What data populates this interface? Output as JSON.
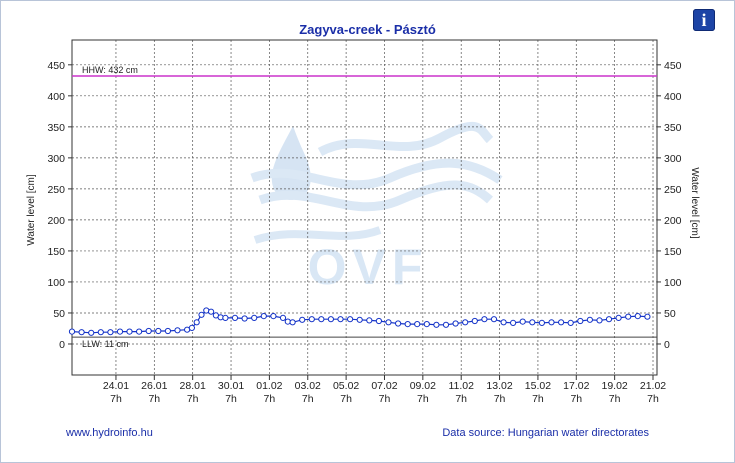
{
  "header": {
    "title": "Zagyva-creek - Pásztó",
    "info_icon": "info-icon",
    "info_label": "i"
  },
  "footer": {
    "website": "www.hydroinfo.hu",
    "source": "Data source: Hungarian water directorates"
  },
  "watermark": {
    "text": "OVF",
    "icon": "water-drop-waves-logo"
  },
  "colors": {
    "series": "#1433c8",
    "hhw": "#cc33cc",
    "llw": "#444444",
    "text": "#1a2ea8",
    "watermark": "#cfe0f2"
  },
  "chart_data": {
    "type": "line",
    "title": "Zagyva-creek - Pásztó",
    "ylabel_left": "Water level [cm]",
    "ylabel_right": "Water level [cm]",
    "ylim": [
      -50,
      490
    ],
    "yticks": [
      0,
      50,
      100,
      150,
      200,
      250,
      300,
      350,
      400,
      450
    ],
    "grid": true,
    "xlim": [
      "2023-01-22T00:00",
      "2023-02-21T12:00"
    ],
    "xticks": [
      {
        "date": "2023-01-24T07:00",
        "day": "24.01",
        "hour": "7h"
      },
      {
        "date": "2023-01-26T07:00",
        "day": "26.01",
        "hour": "7h"
      },
      {
        "date": "2023-01-28T07:00",
        "day": "28.01",
        "hour": "7h"
      },
      {
        "date": "2023-01-30T07:00",
        "day": "30.01",
        "hour": "7h"
      },
      {
        "date": "2023-02-01T07:00",
        "day": "01.02",
        "hour": "7h"
      },
      {
        "date": "2023-02-03T07:00",
        "day": "03.02",
        "hour": "7h"
      },
      {
        "date": "2023-02-05T07:00",
        "day": "05.02",
        "hour": "7h"
      },
      {
        "date": "2023-02-07T07:00",
        "day": "07.02",
        "hour": "7h"
      },
      {
        "date": "2023-02-09T07:00",
        "day": "09.02",
        "hour": "7h"
      },
      {
        "date": "2023-02-11T07:00",
        "day": "11.02",
        "hour": "7h"
      },
      {
        "date": "2023-02-13T07:00",
        "day": "13.02",
        "hour": "7h"
      },
      {
        "date": "2023-02-15T07:00",
        "day": "15.02",
        "hour": "7h"
      },
      {
        "date": "2023-02-17T07:00",
        "day": "17.02",
        "hour": "7h"
      },
      {
        "date": "2023-02-19T07:00",
        "day": "19.02",
        "hour": "7h"
      },
      {
        "date": "2023-02-21T07:00",
        "day": "21.02",
        "hour": "7h"
      }
    ],
    "reference_lines": [
      {
        "name": "HHW",
        "label": "HHW: 432 cm",
        "value": 432
      },
      {
        "name": "LLW",
        "label": "LLW: 11 cm",
        "value": 11
      }
    ],
    "series": [
      {
        "name": "Water level",
        "points": [
          [
            "2023-01-22T00:00",
            20
          ],
          [
            "2023-01-22T12:00",
            19
          ],
          [
            "2023-01-23T00:00",
            18
          ],
          [
            "2023-01-23T12:00",
            19
          ],
          [
            "2023-01-24T00:00",
            19
          ],
          [
            "2023-01-24T12:00",
            20
          ],
          [
            "2023-01-25T00:00",
            20
          ],
          [
            "2023-01-25T12:00",
            20
          ],
          [
            "2023-01-26T00:00",
            21
          ],
          [
            "2023-01-26T12:00",
            21
          ],
          [
            "2023-01-27T00:00",
            21
          ],
          [
            "2023-01-27T12:00",
            22
          ],
          [
            "2023-01-28T00:00",
            23
          ],
          [
            "2023-01-28T06:00",
            26
          ],
          [
            "2023-01-28T12:00",
            35
          ],
          [
            "2023-01-28T18:00",
            47
          ],
          [
            "2023-01-29T00:00",
            54
          ],
          [
            "2023-01-29T06:00",
            52
          ],
          [
            "2023-01-29T12:00",
            46
          ],
          [
            "2023-01-29T18:00",
            43
          ],
          [
            "2023-01-30T00:00",
            42
          ],
          [
            "2023-01-30T12:00",
            42
          ],
          [
            "2023-01-31T00:00",
            41
          ],
          [
            "2023-01-31T12:00",
            42
          ],
          [
            "2023-02-01T00:00",
            45
          ],
          [
            "2023-02-01T12:00",
            45
          ],
          [
            "2023-02-02T00:00",
            42
          ],
          [
            "2023-02-02T06:00",
            36
          ],
          [
            "2023-02-02T12:00",
            35
          ],
          [
            "2023-02-03T00:00",
            39
          ],
          [
            "2023-02-03T12:00",
            40
          ],
          [
            "2023-02-04T00:00",
            40
          ],
          [
            "2023-02-04T12:00",
            40
          ],
          [
            "2023-02-05T00:00",
            40
          ],
          [
            "2023-02-05T12:00",
            40
          ],
          [
            "2023-02-06T00:00",
            39
          ],
          [
            "2023-02-06T12:00",
            38
          ],
          [
            "2023-02-07T00:00",
            37
          ],
          [
            "2023-02-07T12:00",
            35
          ],
          [
            "2023-02-08T00:00",
            33
          ],
          [
            "2023-02-08T12:00",
            32
          ],
          [
            "2023-02-09T00:00",
            32
          ],
          [
            "2023-02-09T12:00",
            32
          ],
          [
            "2023-02-10T00:00",
            31
          ],
          [
            "2023-02-10T12:00",
            31
          ],
          [
            "2023-02-11T00:00",
            33
          ],
          [
            "2023-02-11T12:00",
            35
          ],
          [
            "2023-02-12T00:00",
            37
          ],
          [
            "2023-02-12T12:00",
            40
          ],
          [
            "2023-02-13T00:00",
            40
          ],
          [
            "2023-02-13T12:00",
            35
          ],
          [
            "2023-02-14T00:00",
            34
          ],
          [
            "2023-02-14T12:00",
            36
          ],
          [
            "2023-02-15T00:00",
            35
          ],
          [
            "2023-02-15T12:00",
            34
          ],
          [
            "2023-02-16T00:00",
            35
          ],
          [
            "2023-02-16T12:00",
            35
          ],
          [
            "2023-02-17T00:00",
            34
          ],
          [
            "2023-02-17T12:00",
            37
          ],
          [
            "2023-02-18T00:00",
            39
          ],
          [
            "2023-02-18T12:00",
            38
          ],
          [
            "2023-02-19T00:00",
            40
          ],
          [
            "2023-02-19T12:00",
            42
          ],
          [
            "2023-02-20T00:00",
            44
          ],
          [
            "2023-02-20T12:00",
            45
          ],
          [
            "2023-02-21T00:00",
            44
          ]
        ]
      }
    ]
  }
}
